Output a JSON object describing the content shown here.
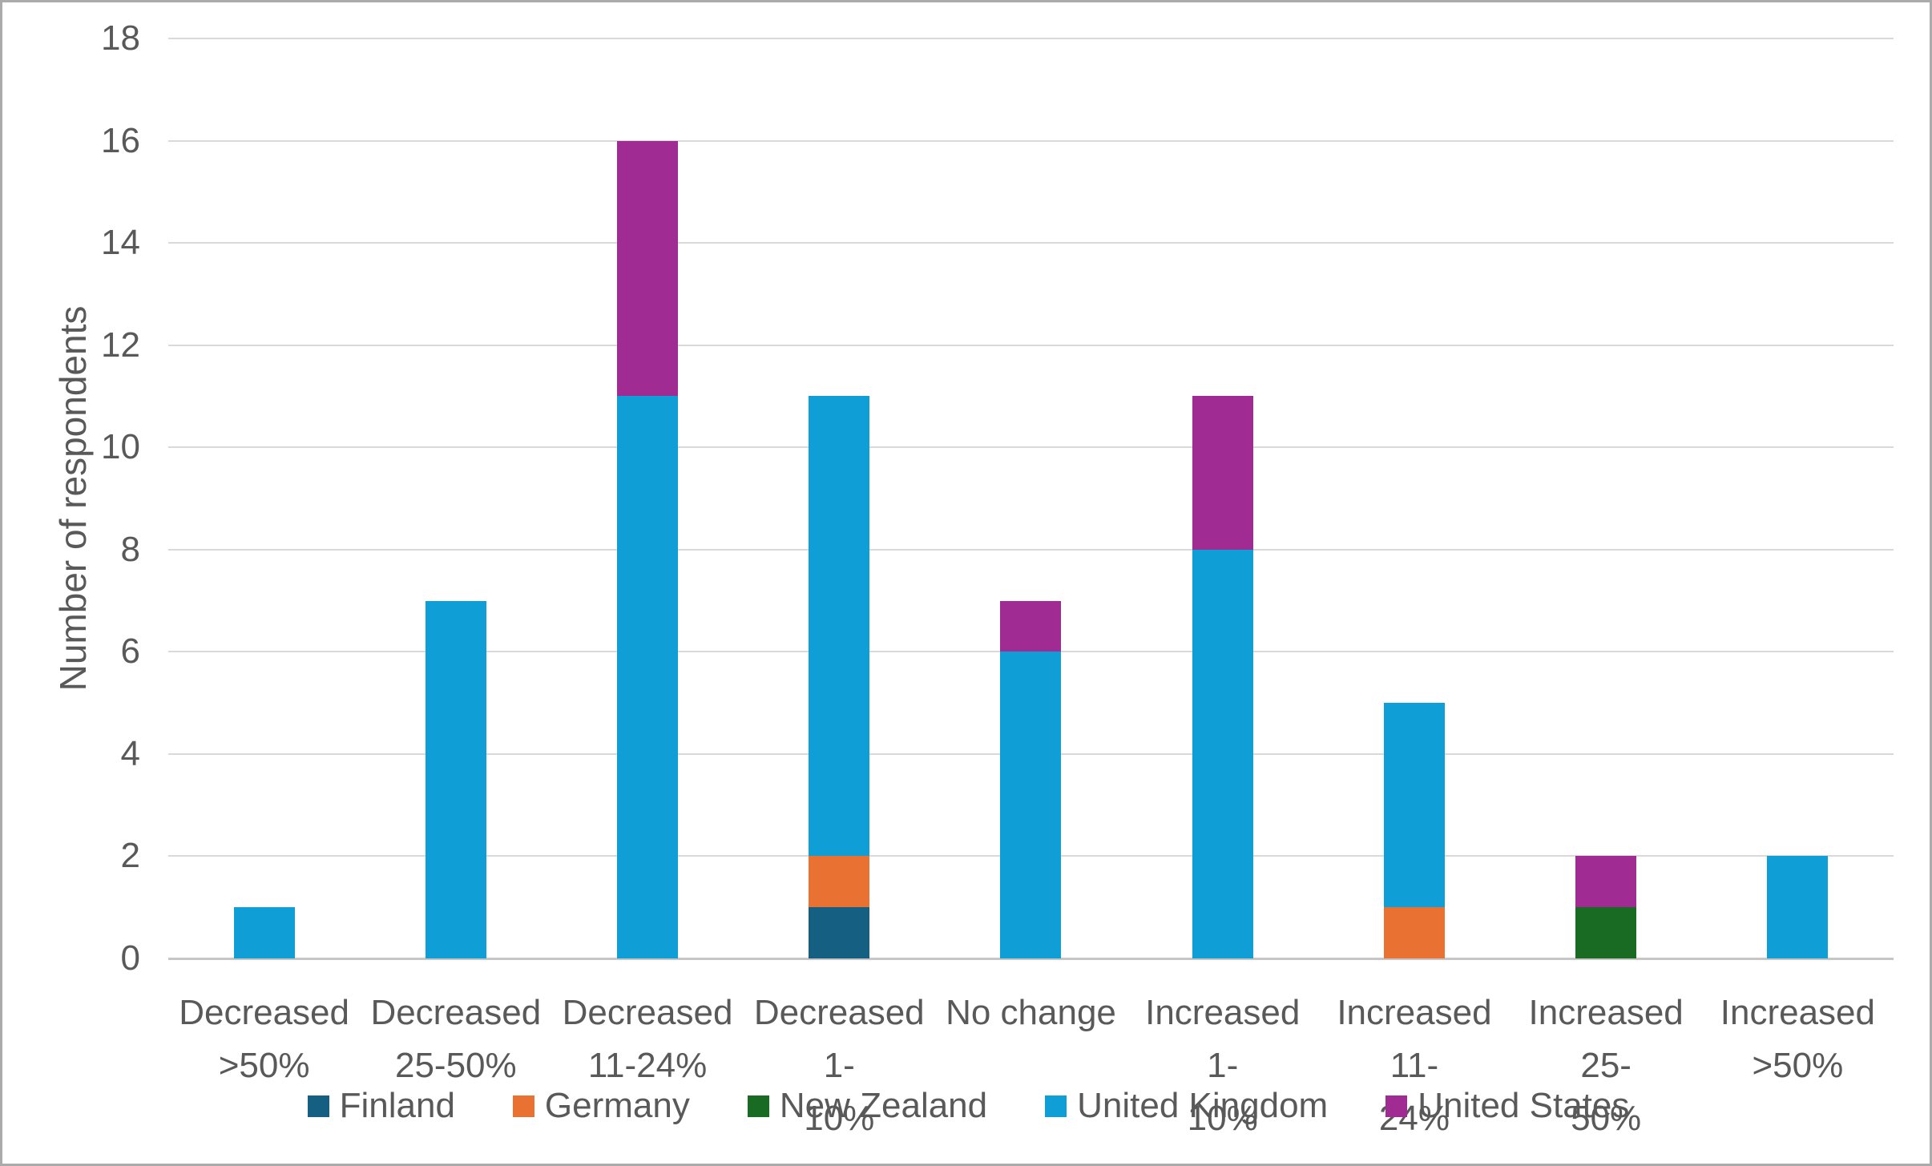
{
  "figure": {
    "background": "#FFFFFF",
    "border_color": "#ABABAB",
    "text_color": "#595959",
    "gridline_color": "#D9D9D9",
    "axis_line_color": "#C6C6C6"
  },
  "chart_data": {
    "type": "bar",
    "stacked": true,
    "title": "",
    "xlabel": "",
    "ylabel": "Number of respondents",
    "ylim": [
      0,
      18
    ],
    "yticks": [
      0,
      2,
      4,
      6,
      8,
      10,
      12,
      14,
      16,
      18
    ],
    "grid": true,
    "legend_position": "bottom",
    "categories": [
      "Decreased >50%",
      "Decreased 25-50%",
      "Decreased 11-24%",
      "Decreased 1-10%",
      "No change",
      "Increased 1-10%",
      "Increased 11-24%",
      "Increased 25-50%",
      "Increased >50%"
    ],
    "category_label_lines": [
      [
        "Decreased",
        ">50%"
      ],
      [
        "Decreased",
        "25-50%"
      ],
      [
        "Decreased",
        "11-24%"
      ],
      [
        "Decreased 1-",
        "10%"
      ],
      [
        "No change"
      ],
      [
        "Increased 1-",
        "10%"
      ],
      [
        "Increased 11-",
        "24%"
      ],
      [
        "Increased 25-",
        "50%"
      ],
      [
        "Increased",
        ">50%"
      ]
    ],
    "series": [
      {
        "name": "Finland",
        "color": "#156082",
        "values": [
          0,
          0,
          0,
          1,
          0,
          0,
          0,
          0,
          0
        ]
      },
      {
        "name": "Germany",
        "color": "#E97132",
        "values": [
          0,
          0,
          0,
          1,
          0,
          0,
          1,
          0,
          0
        ]
      },
      {
        "name": "New Zealand",
        "color": "#196B24",
        "values": [
          0,
          0,
          0,
          0,
          0,
          0,
          0,
          1,
          0
        ]
      },
      {
        "name": "United Kingdom",
        "color": "#0F9ED5",
        "values": [
          1,
          7,
          11,
          9,
          6,
          8,
          4,
          0,
          2
        ]
      },
      {
        "name": "United States",
        "color": "#A02B93",
        "values": [
          0,
          0,
          5,
          0,
          1,
          3,
          0,
          1,
          0
        ]
      }
    ],
    "totals": [
      1,
      7,
      16,
      11,
      7,
      11,
      5,
      2,
      2
    ]
  }
}
